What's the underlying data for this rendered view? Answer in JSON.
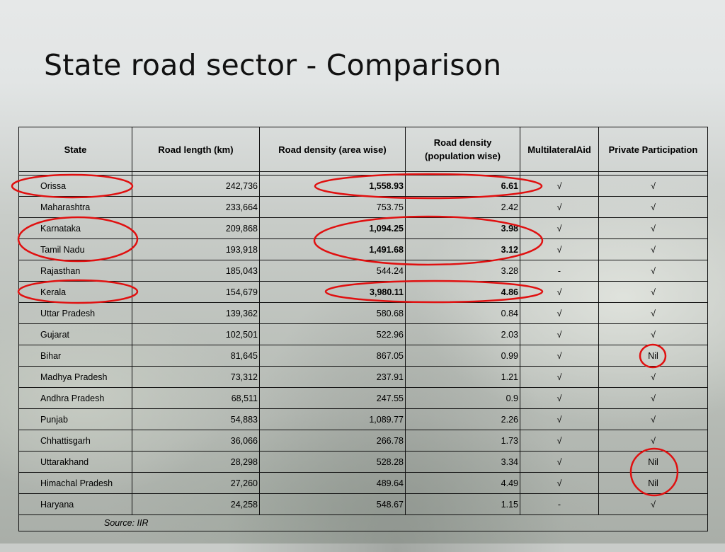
{
  "slide": {
    "title": "State road sector - Comparison",
    "source": "Source: IIR"
  },
  "table": {
    "headers": [
      "State",
      "Road length (km)",
      "Road density (area wise)",
      "Road density (population wise)",
      "MultilateralAid",
      "Private Participation"
    ],
    "rows": [
      {
        "state": "Orissa",
        "length": "242,736",
        "density_area": "1,558.93",
        "density_pop": "6.61",
        "aid": "√",
        "private": "√",
        "bold": true
      },
      {
        "state": "Maharashtra",
        "length": "233,664",
        "density_area": "753.75",
        "density_pop": "2.42",
        "aid": "√",
        "private": "√",
        "bold": false
      },
      {
        "state": "Karnataka",
        "length": "209,868",
        "density_area": "1,094.25",
        "density_pop": "3.98",
        "aid": "√",
        "private": "√",
        "bold": true
      },
      {
        "state": "Tamil Nadu",
        "length": "193,918",
        "density_area": "1,491.68",
        "density_pop": "3.12",
        "aid": "√",
        "private": "√",
        "bold": true
      },
      {
        "state": "Rajasthan",
        "length": "185,043",
        "density_area": "544.24",
        "density_pop": "3.28",
        "aid": "-",
        "private": "√",
        "bold": false
      },
      {
        "state": "Kerala",
        "length": "154,679",
        "density_area": "3,980.11",
        "density_pop": "4.86",
        "aid": "√",
        "private": "√",
        "bold": true
      },
      {
        "state": "Uttar Pradesh",
        "length": "139,362",
        "density_area": "580.68",
        "density_pop": "0.84",
        "aid": "√",
        "private": "√",
        "bold": false
      },
      {
        "state": "Gujarat",
        "length": "102,501",
        "density_area": "522.96",
        "density_pop": "2.03",
        "aid": "√",
        "private": "√",
        "bold": false
      },
      {
        "state": "Bihar",
        "length": "81,645",
        "density_area": "867.05",
        "density_pop": "0.99",
        "aid": "√",
        "private": "Nil",
        "bold": false
      },
      {
        "state": "Madhya Pradesh",
        "length": "73,312",
        "density_area": "237.91",
        "density_pop": "1.21",
        "aid": "√",
        "private": "√",
        "bold": false
      },
      {
        "state": "Andhra Pradesh",
        "length": "68,511",
        "density_area": "247.55",
        "density_pop": "0.9",
        "aid": "√",
        "private": "√",
        "bold": false
      },
      {
        "state": "Punjab",
        "length": "54,883",
        "density_area": "1,089.77",
        "density_pop": "2.26",
        "aid": "√",
        "private": "√",
        "bold": false
      },
      {
        "state": "Chhattisgarh",
        "length": "36,066",
        "density_area": "266.78",
        "density_pop": "1.73",
        "aid": "√",
        "private": "√",
        "bold": false
      },
      {
        "state": "Uttarakhand",
        "length": "28,298",
        "density_area": "528.28",
        "density_pop": "3.34",
        "aid": "√",
        "private": "Nil",
        "bold": false
      },
      {
        "state": "Himachal Pradesh",
        "length": "27,260",
        "density_area": "489.64",
        "density_pop": "4.49",
        "aid": "√",
        "private": "Nil",
        "bold": false
      },
      {
        "state": "Haryana",
        "length": "24,258",
        "density_area": "548.67",
        "density_pop": "1.15",
        "aid": "-",
        "private": "√",
        "bold": false
      }
    ]
  },
  "colors": {
    "highlight_ring": "#e01010"
  }
}
